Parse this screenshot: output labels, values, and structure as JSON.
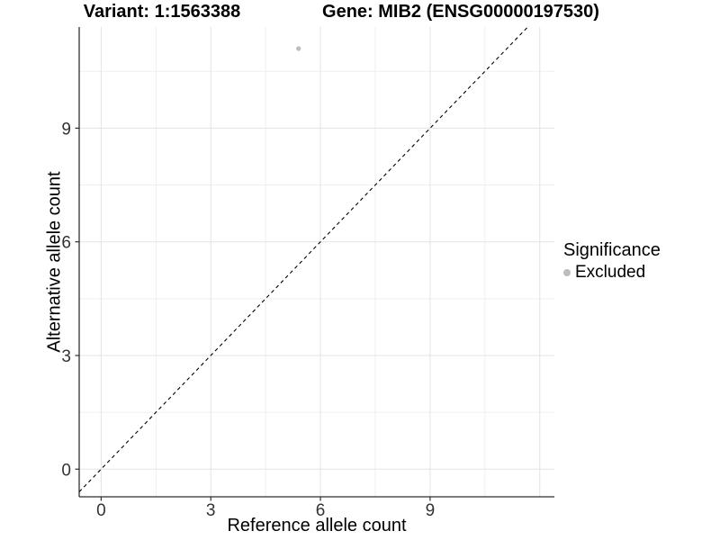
{
  "titles": {
    "variant": "Variant: 1:1563388",
    "gene": "Gene: MIB2 (ENSG00000197530)"
  },
  "chart_data": {
    "type": "scatter",
    "title_left": "Variant: 1:1563388",
    "title_right": "Gene: MIB2 (ENSG00000197530)",
    "xlabel": "Reference allele count",
    "ylabel": "Alternative allele count",
    "xlim": [
      -0.6,
      12.4
    ],
    "ylim": [
      -0.73,
      11.67
    ],
    "x_ticks": [
      0,
      3,
      6,
      9
    ],
    "y_ticks": [
      0,
      3,
      6,
      9
    ],
    "x_grid_major": [
      0,
      3,
      6,
      9,
      12
    ],
    "x_grid_minor": [
      1.5,
      4.5,
      7.5,
      10.5
    ],
    "y_grid_major": [
      0,
      3,
      6,
      9
    ],
    "y_grid_minor": [
      1.5,
      4.5,
      7.5,
      10.5
    ],
    "grid": true,
    "identity_line": {
      "style": "dashed",
      "x1": -0.6,
      "y1": -0.6,
      "x2": 11.67,
      "y2": 11.67,
      "color": "#000000"
    },
    "series": [
      {
        "name": "Excluded",
        "color": "#bdbdbd",
        "points": [
          {
            "x": 5.4,
            "y": 11.1
          }
        ]
      }
    ],
    "legend": {
      "title": "Significance",
      "position": "right",
      "items": [
        {
          "label": "Excluded",
          "color": "#bdbdbd"
        }
      ]
    }
  },
  "colors": {
    "background": "#ffffff",
    "grid_major": "#e3e3e3",
    "grid_minor": "#efefef",
    "axis_line": "#2f2f2f",
    "tick": "#2f2f2f",
    "tick_label": "#333333",
    "text": "#000000",
    "point_excluded": "#bdbdbd"
  }
}
